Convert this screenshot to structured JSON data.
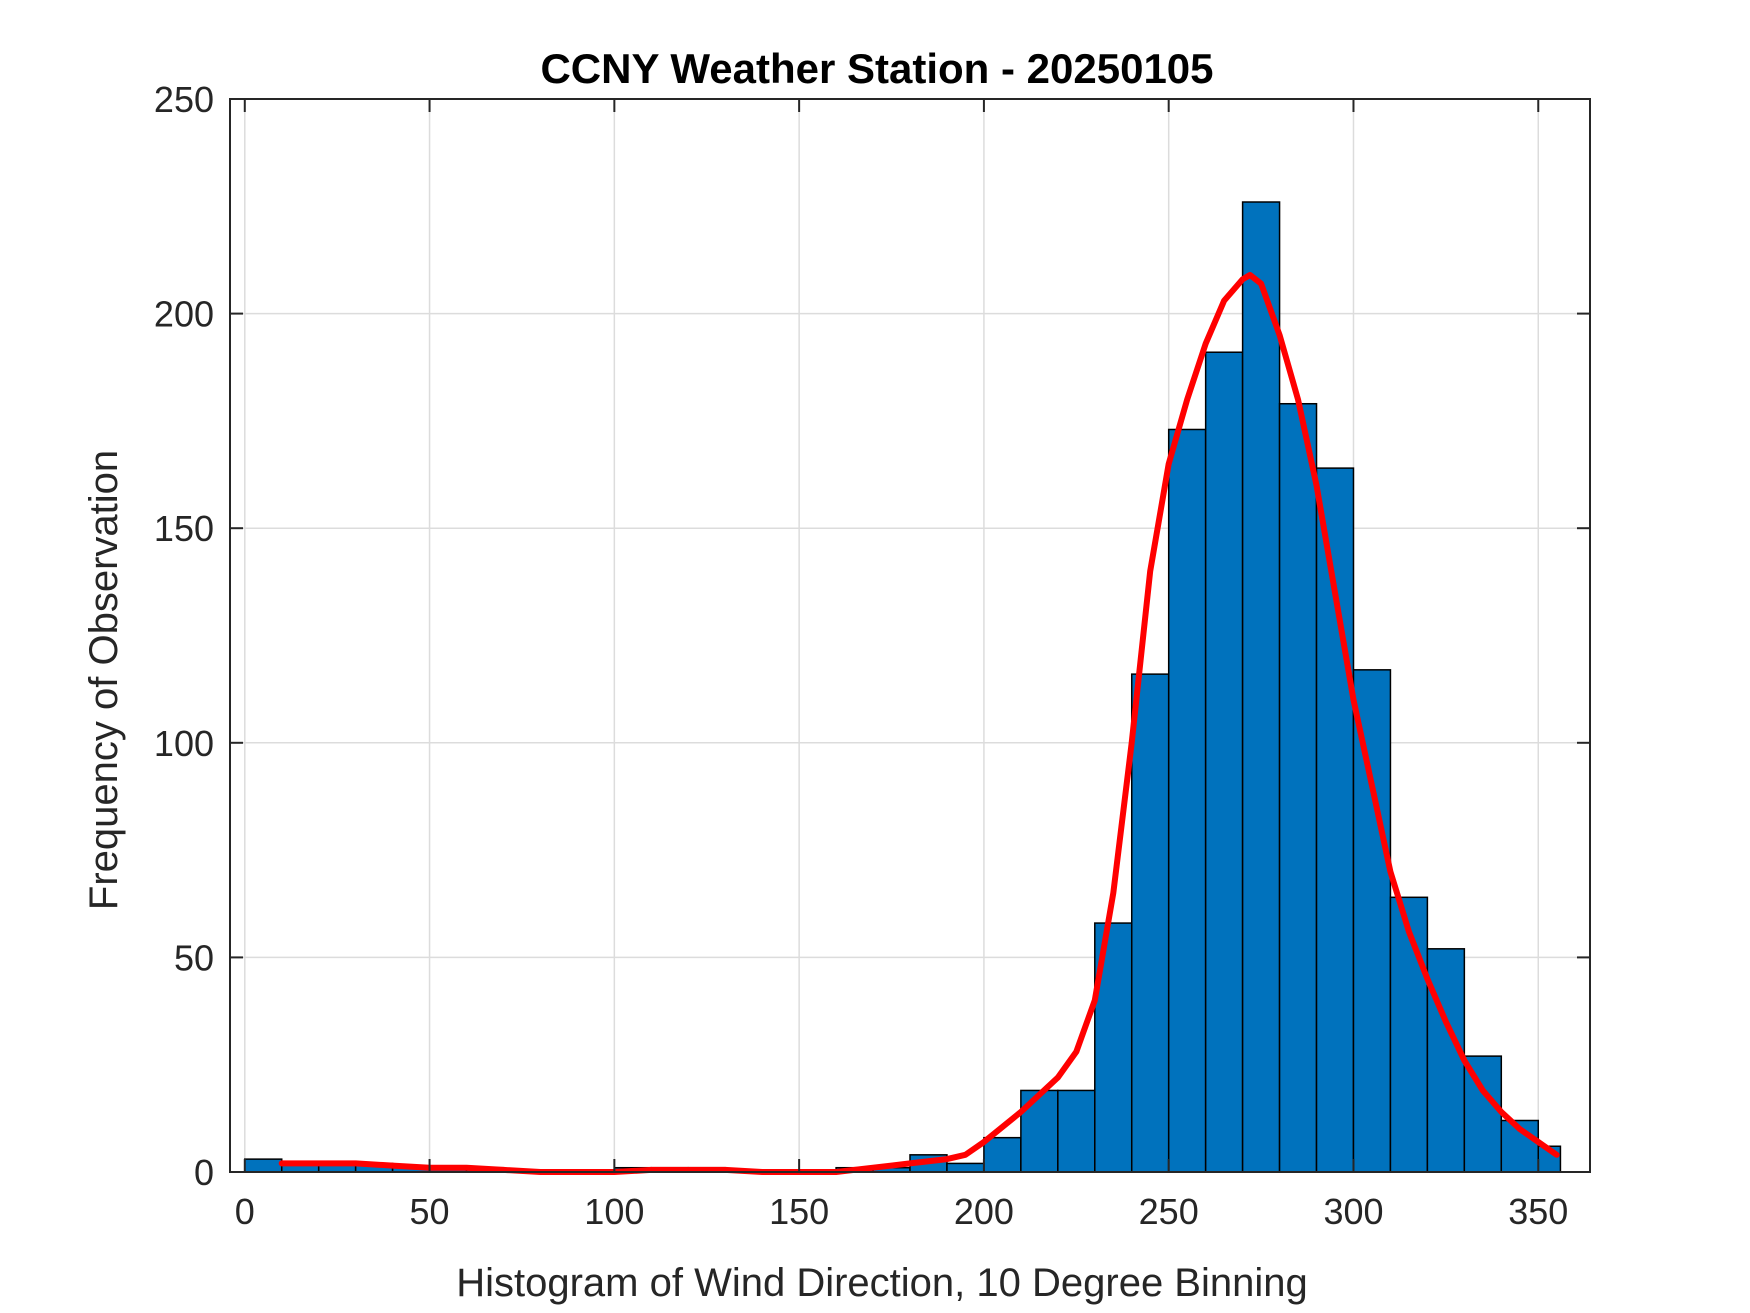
{
  "chart_data": {
    "type": "bar",
    "title": "CCNY Weather Station - 20250105",
    "xlabel": "Histogram of Wind Direction, 10 Degree Binning",
    "ylabel": "Frequency of Observation",
    "xlim": [
      -4,
      364
    ],
    "ylim": [
      0,
      250
    ],
    "xticks": [
      0,
      50,
      100,
      150,
      200,
      250,
      300,
      350
    ],
    "yticks": [
      0,
      50,
      100,
      150,
      200,
      250
    ],
    "grid": true,
    "bin_width": 10,
    "bins": [
      {
        "x0": 0,
        "x1": 10,
        "count": 3
      },
      {
        "x0": 10,
        "x1": 20,
        "count": 2
      },
      {
        "x0": 20,
        "x1": 30,
        "count": 2
      },
      {
        "x0": 30,
        "x1": 40,
        "count": 2
      },
      {
        "x0": 40,
        "x1": 50,
        "count": 1
      },
      {
        "x0": 50,
        "x1": 60,
        "count": 1
      },
      {
        "x0": 60,
        "x1": 70,
        "count": 1
      },
      {
        "x0": 70,
        "x1": 80,
        "count": 0
      },
      {
        "x0": 80,
        "x1": 90,
        "count": 0
      },
      {
        "x0": 90,
        "x1": 100,
        "count": 0
      },
      {
        "x0": 100,
        "x1": 110,
        "count": 1
      },
      {
        "x0": 110,
        "x1": 120,
        "count": 1
      },
      {
        "x0": 120,
        "x1": 130,
        "count": 1
      },
      {
        "x0": 130,
        "x1": 140,
        "count": 0
      },
      {
        "x0": 140,
        "x1": 150,
        "count": 0
      },
      {
        "x0": 150,
        "x1": 160,
        "count": 0
      },
      {
        "x0": 160,
        "x1": 170,
        "count": 1
      },
      {
        "x0": 170,
        "x1": 180,
        "count": 1
      },
      {
        "x0": 180,
        "x1": 190,
        "count": 4
      },
      {
        "x0": 190,
        "x1": 200,
        "count": 2
      },
      {
        "x0": 200,
        "x1": 210,
        "count": 8
      },
      {
        "x0": 210,
        "x1": 220,
        "count": 19
      },
      {
        "x0": 220,
        "x1": 230,
        "count": 19
      },
      {
        "x0": 230,
        "x1": 240,
        "count": 58
      },
      {
        "x0": 240,
        "x1": 250,
        "count": 116
      },
      {
        "x0": 250,
        "x1": 260,
        "count": 173
      },
      {
        "x0": 260,
        "x1": 270,
        "count": 191
      },
      {
        "x0": 270,
        "x1": 280,
        "count": 226
      },
      {
        "x0": 280,
        "x1": 290,
        "count": 179
      },
      {
        "x0": 290,
        "x1": 300,
        "count": 164
      },
      {
        "x0": 300,
        "x1": 310,
        "count": 117
      },
      {
        "x0": 310,
        "x1": 320,
        "count": 64
      },
      {
        "x0": 320,
        "x1": 330,
        "count": 52
      },
      {
        "x0": 330,
        "x1": 340,
        "count": 27
      },
      {
        "x0": 340,
        "x1": 350,
        "count": 12
      },
      {
        "x0": 350,
        "x1": 356,
        "count": 6
      }
    ],
    "fit_curve": {
      "x": [
        10,
        20,
        30,
        40,
        50,
        60,
        70,
        80,
        90,
        100,
        110,
        120,
        130,
        140,
        150,
        160,
        170,
        180,
        190,
        195,
        200,
        210,
        220,
        225,
        230,
        235,
        240,
        245,
        250,
        255,
        260,
        265,
        270,
        272,
        275,
        280,
        285,
        290,
        295,
        300,
        305,
        310,
        315,
        320,
        325,
        330,
        335,
        340,
        345,
        350,
        355
      ],
      "y": [
        2,
        2,
        2,
        1.5,
        1,
        1,
        0.5,
        0,
        0,
        0,
        0.5,
        0.5,
        0.5,
        0,
        0,
        0,
        1,
        2,
        3,
        4,
        7,
        14,
        22,
        28,
        40,
        65,
        100,
        140,
        165,
        180,
        193,
        203,
        208,
        209,
        207,
        195,
        180,
        160,
        135,
        110,
        90,
        70,
        56,
        45,
        35,
        26,
        19,
        14,
        10,
        7,
        4
      ],
      "color": "#ff0000"
    },
    "colors": {
      "bar_fill": "#0072bd",
      "bar_edge": "#000000",
      "curve": "#ff0000"
    }
  }
}
